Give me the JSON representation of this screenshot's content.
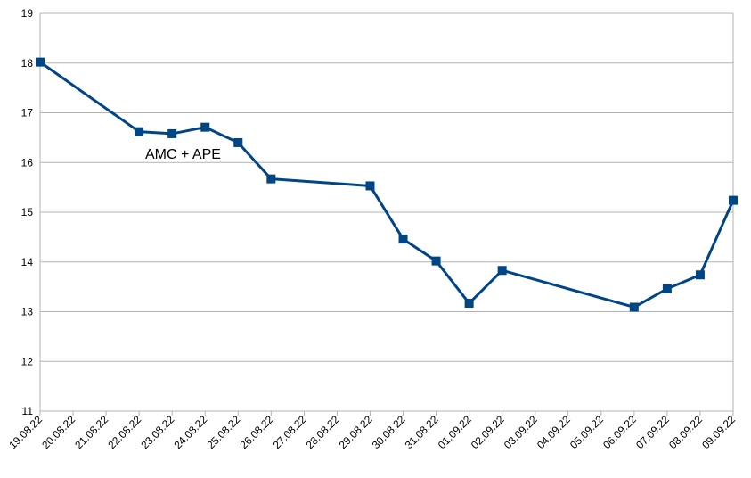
{
  "chart_data": {
    "type": "line",
    "title": "",
    "xlabel": "",
    "ylabel": "",
    "ylim": [
      11,
      19
    ],
    "y_ticks": [
      11,
      12,
      13,
      14,
      15,
      16,
      17,
      18,
      19
    ],
    "x_categories": [
      "19.08.22",
      "20.08.22",
      "21.08.22",
      "22.08.22",
      "23.08.22",
      "24.08.22",
      "25.08.22",
      "26.08.22",
      "27.08.22",
      "28.08.22",
      "29.08.22",
      "30.08.22",
      "31.08.22",
      "01.09.22",
      "02.09.22",
      "03.09.22",
      "04.09.22",
      "05.09.22",
      "06.09.22",
      "07.09.22",
      "08.09.22",
      "09.09.22"
    ],
    "grid": "horizontal",
    "legend": "none",
    "series": [
      {
        "color": "#004586",
        "points": [
          {
            "x": "19.08.22",
            "y": 18.02
          },
          {
            "x": "22.08.22",
            "y": 16.62
          },
          {
            "x": "23.08.22",
            "y": 16.58
          },
          {
            "x": "24.08.22",
            "y": 16.71
          },
          {
            "x": "25.08.22",
            "y": 16.4
          },
          {
            "x": "26.08.22",
            "y": 15.67
          },
          {
            "x": "29.08.22",
            "y": 15.53
          },
          {
            "x": "30.08.22",
            "y": 14.46
          },
          {
            "x": "31.08.22",
            "y": 14.02
          },
          {
            "x": "01.09.22",
            "y": 13.17
          },
          {
            "x": "02.09.22",
            "y": 13.83
          },
          {
            "x": "06.09.22",
            "y": 13.09
          },
          {
            "x": "07.09.22",
            "y": 13.46
          },
          {
            "x": "08.09.22",
            "y": 13.74
          },
          {
            "x": "09.09.22",
            "y": 15.24
          }
        ]
      }
    ],
    "annotation": "AMC + APE"
  }
}
